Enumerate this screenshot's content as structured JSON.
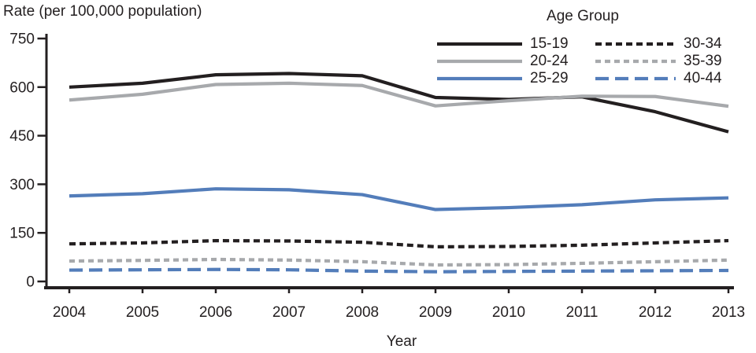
{
  "chart_data": {
    "type": "line",
    "title": "Rate (per 100,000 population)",
    "xlabel": "Year",
    "ylabel": "",
    "legend_title": "Age Group",
    "legend_position": "top-right",
    "grid": false,
    "x": [
      2004,
      2005,
      2006,
      2007,
      2008,
      2009,
      2010,
      2011,
      2012,
      2013
    ],
    "ylim": [
      0,
      750
    ],
    "yticks": [
      0,
      150,
      300,
      450,
      600,
      750
    ],
    "axis_color": "#231f20",
    "series": [
      {
        "name": "15-19",
        "color": "#231f20",
        "dash": "none",
        "values": [
          600,
          612,
          638,
          642,
          635,
          568,
          562,
          570,
          524,
          462
        ]
      },
      {
        "name": "20-24",
        "color": "#a7a9ac",
        "dash": "none",
        "values": [
          560,
          578,
          608,
          612,
          605,
          542,
          558,
          572,
          571,
          541
        ]
      },
      {
        "name": "25-29",
        "color": "#537dba",
        "dash": "none",
        "values": [
          264,
          271,
          286,
          283,
          268,
          222,
          228,
          237,
          252,
          258
        ]
      },
      {
        "name": "30-34",
        "color": "#231f20",
        "dash": "8 5",
        "values": [
          116,
          119,
          126,
          125,
          121,
          107,
          108,
          112,
          119,
          126
        ]
      },
      {
        "name": "35-39",
        "color": "#a7a9ac",
        "dash": "7 5",
        "values": [
          63,
          65,
          68,
          66,
          61,
          51,
          52,
          56,
          61,
          66
        ]
      },
      {
        "name": "40-44",
        "color": "#537dba",
        "dash": "17 8",
        "values": [
          35,
          36,
          37,
          36,
          32,
          30,
          31,
          32,
          33,
          34
        ]
      }
    ]
  }
}
